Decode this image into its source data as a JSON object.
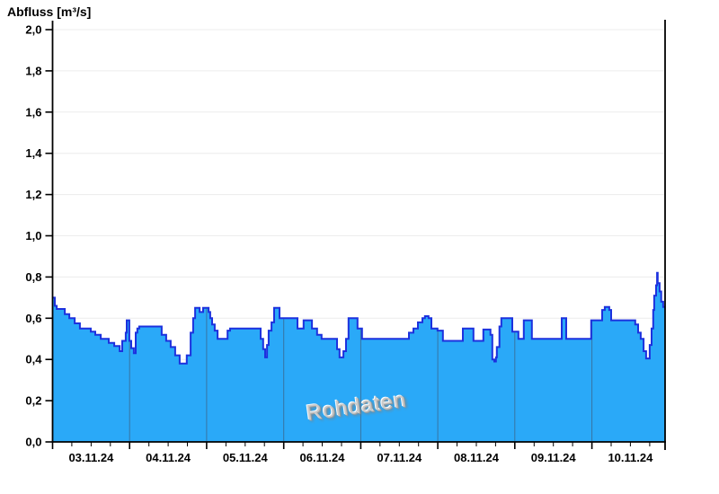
{
  "chart_data": {
    "type": "area",
    "step": true,
    "title": "Abfluss [m³/s]",
    "watermark": "Rohdaten",
    "xlabel": "",
    "ylabel": "Abfluss [m³/s]",
    "ylim": [
      0.0,
      2.0
    ],
    "ytick_step": 0.2,
    "ytick_labels": [
      "0,0",
      "0,2",
      "0,4",
      "0,6",
      "0,8",
      "1,0",
      "1,2",
      "1,4",
      "1,6",
      "1,8",
      "2,0"
    ],
    "x_day_labels": [
      "03.11.24",
      "04.11.24",
      "05.11.24",
      "06.11.24",
      "07.11.24",
      "08.11.24",
      "09.11.24",
      "10.11.24"
    ],
    "x_total_hours": 190.8,
    "x_major_tick_hours": 24,
    "x_minor_tick_hours": 6,
    "grid": "horizontal-light",
    "legend_position": "none",
    "series": [
      {
        "name": "Abfluss Rohdaten",
        "unit": "m³/s",
        "points_format": "[hours_since_03.11.24_00:00, value_m3s] step-after",
        "points": [
          [
            0.0,
            0.7
          ],
          [
            0.7,
            0.66
          ],
          [
            1.3,
            0.645
          ],
          [
            3.8,
            0.62
          ],
          [
            5.2,
            0.6
          ],
          [
            6.9,
            0.575
          ],
          [
            8.5,
            0.55
          ],
          [
            11.9,
            0.535
          ],
          [
            13.3,
            0.52
          ],
          [
            15.0,
            0.5
          ],
          [
            17.5,
            0.48
          ],
          [
            19.2,
            0.465
          ],
          [
            20.9,
            0.44
          ],
          [
            21.7,
            0.49
          ],
          [
            22.8,
            0.53
          ],
          [
            23.1,
            0.59
          ],
          [
            23.9,
            0.49
          ],
          [
            24.5,
            0.455
          ],
          [
            25.3,
            0.43
          ],
          [
            25.9,
            0.53
          ],
          [
            26.4,
            0.55
          ],
          [
            27.0,
            0.56
          ],
          [
            34.0,
            0.52
          ],
          [
            35.4,
            0.49
          ],
          [
            36.8,
            0.46
          ],
          [
            38.2,
            0.42
          ],
          [
            39.6,
            0.38
          ],
          [
            41.8,
            0.42
          ],
          [
            43.0,
            0.53
          ],
          [
            43.8,
            0.6
          ],
          [
            44.4,
            0.65
          ],
          [
            45.8,
            0.63
          ],
          [
            46.9,
            0.65
          ],
          [
            48.6,
            0.63
          ],
          [
            49.1,
            0.6
          ],
          [
            49.7,
            0.57
          ],
          [
            50.5,
            0.54
          ],
          [
            51.4,
            0.5
          ],
          [
            54.5,
            0.54
          ],
          [
            55.3,
            0.55
          ],
          [
            64.8,
            0.5
          ],
          [
            65.6,
            0.45
          ],
          [
            66.2,
            0.41
          ],
          [
            66.8,
            0.47
          ],
          [
            67.3,
            0.54
          ],
          [
            68.2,
            0.58
          ],
          [
            69.0,
            0.65
          ],
          [
            70.7,
            0.6
          ],
          [
            76.3,
            0.55
          ],
          [
            78.2,
            0.59
          ],
          [
            80.8,
            0.55
          ],
          [
            82.4,
            0.52
          ],
          [
            83.8,
            0.5
          ],
          [
            88.6,
            0.45
          ],
          [
            89.4,
            0.41
          ],
          [
            90.6,
            0.44
          ],
          [
            91.4,
            0.5
          ],
          [
            92.2,
            0.6
          ],
          [
            95.0,
            0.55
          ],
          [
            96.4,
            0.5
          ],
          [
            111.0,
            0.53
          ],
          [
            112.4,
            0.55
          ],
          [
            113.8,
            0.58
          ],
          [
            115.2,
            0.6
          ],
          [
            116.0,
            0.61
          ],
          [
            117.1,
            0.6
          ],
          [
            118.0,
            0.55
          ],
          [
            119.9,
            0.54
          ],
          [
            121.6,
            0.49
          ],
          [
            127.8,
            0.55
          ],
          [
            131.1,
            0.49
          ],
          [
            134.2,
            0.545
          ],
          [
            136.4,
            0.52
          ],
          [
            137.0,
            0.4
          ],
          [
            137.6,
            0.39
          ],
          [
            138.1,
            0.41
          ],
          [
            138.4,
            0.46
          ],
          [
            139.2,
            0.56
          ],
          [
            139.8,
            0.6
          ],
          [
            143.2,
            0.535
          ],
          [
            145.1,
            0.5
          ],
          [
            146.8,
            0.59
          ],
          [
            149.3,
            0.5
          ],
          [
            158.6,
            0.6
          ],
          [
            160.0,
            0.5
          ],
          [
            167.8,
            0.59
          ],
          [
            171.2,
            0.64
          ],
          [
            172.0,
            0.655
          ],
          [
            173.4,
            0.64
          ],
          [
            174.0,
            0.59
          ],
          [
            181.5,
            0.57
          ],
          [
            182.4,
            0.53
          ],
          [
            183.2,
            0.5
          ],
          [
            184.1,
            0.44
          ],
          [
            184.9,
            0.405
          ],
          [
            186.0,
            0.47
          ],
          [
            186.6,
            0.55
          ],
          [
            187.1,
            0.64
          ],
          [
            187.4,
            0.71
          ],
          [
            188.0,
            0.76
          ],
          [
            188.3,
            0.82
          ],
          [
            188.5,
            0.77
          ],
          [
            189.1,
            0.73
          ],
          [
            189.6,
            0.68
          ],
          [
            190.2,
            0.655
          ]
        ]
      }
    ],
    "colors": {
      "fill": "#2AA9F8",
      "line": "#1C31DE",
      "grid": "#ECECEC",
      "axis": "#000000",
      "day_line": "#3A6B92",
      "watermark": "#C9C9C9"
    }
  }
}
